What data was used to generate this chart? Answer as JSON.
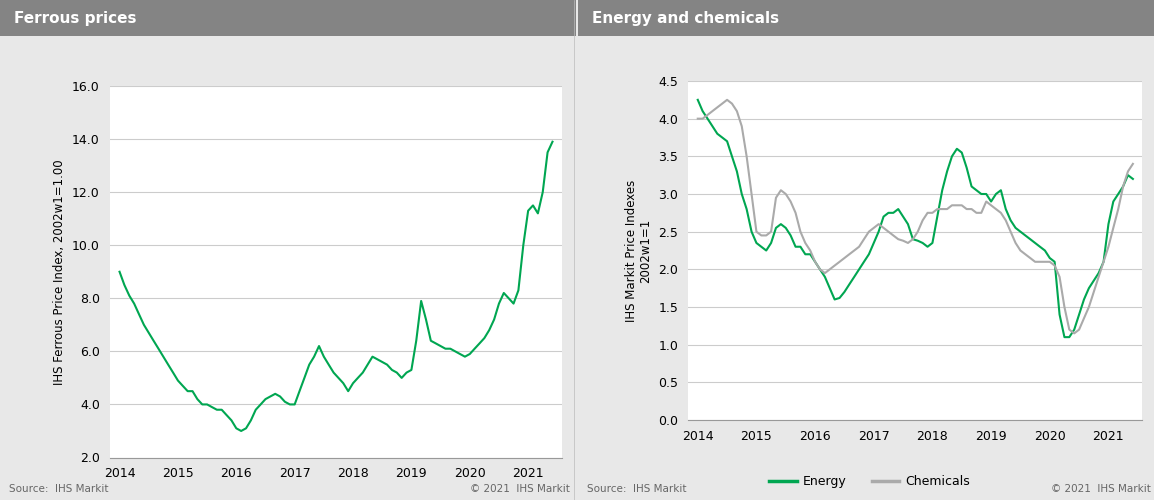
{
  "left_title": "Ferrous prices",
  "right_title": "Energy and chemicals",
  "left_ylabel": "IHS Ferrous Price Index, 2002w1=1.00",
  "right_ylabel": "IHS Markit Price Indexes\n2002w1=1",
  "left_ylim": [
    2.0,
    16.0
  ],
  "right_ylim": [
    0.0,
    4.5
  ],
  "left_yticks": [
    2.0,
    4.0,
    6.0,
    8.0,
    10.0,
    12.0,
    14.0,
    16.0
  ],
  "right_yticks": [
    0.0,
    0.5,
    1.0,
    1.5,
    2.0,
    2.5,
    3.0,
    3.5,
    4.0,
    4.5
  ],
  "source_text": "Source:  IHS Markit",
  "copyright_text": "© 2021  IHS Markit",
  "header_bg_color": "#848484",
  "header_text_color": "#ffffff",
  "panel_bg_color": "#e8e8e8",
  "plot_bg_color": "#ffffff",
  "grid_color": "#cccccc",
  "green_color": "#00a651",
  "gray_color": "#aaaaaa",
  "footer_text_color": "#666666",
  "line_width": 1.5,
  "ferrous_x": [
    2014.0,
    2014.083,
    2014.167,
    2014.25,
    2014.333,
    2014.417,
    2014.5,
    2014.583,
    2014.667,
    2014.75,
    2014.833,
    2014.917,
    2015.0,
    2015.083,
    2015.167,
    2015.25,
    2015.333,
    2015.417,
    2015.5,
    2015.583,
    2015.667,
    2015.75,
    2015.833,
    2015.917,
    2016.0,
    2016.083,
    2016.167,
    2016.25,
    2016.333,
    2016.417,
    2016.5,
    2016.583,
    2016.667,
    2016.75,
    2016.833,
    2016.917,
    2017.0,
    2017.083,
    2017.167,
    2017.25,
    2017.333,
    2017.417,
    2017.5,
    2017.583,
    2017.667,
    2017.75,
    2017.833,
    2017.917,
    2018.0,
    2018.083,
    2018.167,
    2018.25,
    2018.333,
    2018.417,
    2018.5,
    2018.583,
    2018.667,
    2018.75,
    2018.833,
    2018.917,
    2019.0,
    2019.083,
    2019.167,
    2019.25,
    2019.333,
    2019.417,
    2019.5,
    2019.583,
    2019.667,
    2019.75,
    2019.833,
    2019.917,
    2020.0,
    2020.083,
    2020.167,
    2020.25,
    2020.333,
    2020.417,
    2020.5,
    2020.583,
    2020.667,
    2020.75,
    2020.833,
    2020.917,
    2021.0,
    2021.083,
    2021.167,
    2021.25,
    2021.333,
    2021.417
  ],
  "ferrous_y": [
    9.0,
    8.5,
    8.1,
    7.8,
    7.4,
    7.0,
    6.7,
    6.4,
    6.1,
    5.8,
    5.5,
    5.2,
    4.9,
    4.7,
    4.5,
    4.5,
    4.2,
    4.0,
    4.0,
    3.9,
    3.8,
    3.8,
    3.6,
    3.4,
    3.1,
    3.0,
    3.1,
    3.4,
    3.8,
    4.0,
    4.2,
    4.3,
    4.4,
    4.3,
    4.1,
    4.0,
    4.0,
    4.5,
    5.0,
    5.5,
    5.8,
    6.2,
    5.8,
    5.5,
    5.2,
    5.0,
    4.8,
    4.5,
    4.8,
    5.0,
    5.2,
    5.5,
    5.8,
    5.7,
    5.6,
    5.5,
    5.3,
    5.2,
    5.0,
    5.2,
    5.3,
    6.4,
    7.9,
    7.2,
    6.4,
    6.3,
    6.2,
    6.1,
    6.1,
    6.0,
    5.9,
    5.8,
    5.9,
    6.1,
    6.3,
    6.5,
    6.8,
    7.2,
    7.8,
    8.2,
    8.0,
    7.8,
    8.3,
    10.0,
    11.3,
    11.5,
    11.2,
    12.0,
    13.5,
    13.9
  ],
  "energy_x": [
    2014.0,
    2014.083,
    2014.167,
    2014.25,
    2014.333,
    2014.417,
    2014.5,
    2014.583,
    2014.667,
    2014.75,
    2014.833,
    2014.917,
    2015.0,
    2015.083,
    2015.167,
    2015.25,
    2015.333,
    2015.417,
    2015.5,
    2015.583,
    2015.667,
    2015.75,
    2015.833,
    2015.917,
    2016.0,
    2016.083,
    2016.167,
    2016.25,
    2016.333,
    2016.417,
    2016.5,
    2016.583,
    2016.667,
    2016.75,
    2016.833,
    2016.917,
    2017.0,
    2017.083,
    2017.167,
    2017.25,
    2017.333,
    2017.417,
    2017.5,
    2017.583,
    2017.667,
    2017.75,
    2017.833,
    2017.917,
    2018.0,
    2018.083,
    2018.167,
    2018.25,
    2018.333,
    2018.417,
    2018.5,
    2018.583,
    2018.667,
    2018.75,
    2018.833,
    2018.917,
    2019.0,
    2019.083,
    2019.167,
    2019.25,
    2019.333,
    2019.417,
    2019.5,
    2019.583,
    2019.667,
    2019.75,
    2019.833,
    2019.917,
    2020.0,
    2020.083,
    2020.167,
    2020.25,
    2020.333,
    2020.417,
    2020.5,
    2020.583,
    2020.667,
    2020.75,
    2020.833,
    2020.917,
    2021.0,
    2021.083,
    2021.167,
    2021.25,
    2021.333,
    2021.417
  ],
  "energy_y": [
    4.25,
    4.1,
    4.0,
    3.9,
    3.8,
    3.75,
    3.7,
    3.5,
    3.3,
    3.0,
    2.8,
    2.5,
    2.35,
    2.3,
    2.25,
    2.35,
    2.55,
    2.6,
    2.55,
    2.45,
    2.3,
    2.3,
    2.2,
    2.2,
    2.1,
    2.0,
    1.9,
    1.75,
    1.6,
    1.62,
    1.7,
    1.8,
    1.9,
    2.0,
    2.1,
    2.2,
    2.35,
    2.5,
    2.7,
    2.75,
    2.75,
    2.8,
    2.7,
    2.6,
    2.4,
    2.38,
    2.35,
    2.3,
    2.35,
    2.7,
    3.05,
    3.3,
    3.5,
    3.6,
    3.55,
    3.35,
    3.1,
    3.05,
    3.0,
    3.0,
    2.9,
    3.0,
    3.05,
    2.8,
    2.65,
    2.55,
    2.5,
    2.45,
    2.4,
    2.35,
    2.3,
    2.25,
    2.15,
    2.1,
    1.4,
    1.1,
    1.1,
    1.2,
    1.4,
    1.6,
    1.75,
    1.85,
    1.95,
    2.1,
    2.6,
    2.9,
    3.0,
    3.1,
    3.25,
    3.2
  ],
  "chemicals_x": [
    2014.0,
    2014.083,
    2014.167,
    2014.25,
    2014.333,
    2014.417,
    2014.5,
    2014.583,
    2014.667,
    2014.75,
    2014.833,
    2014.917,
    2015.0,
    2015.083,
    2015.167,
    2015.25,
    2015.333,
    2015.417,
    2015.5,
    2015.583,
    2015.667,
    2015.75,
    2015.833,
    2015.917,
    2016.0,
    2016.083,
    2016.167,
    2016.25,
    2016.333,
    2016.417,
    2016.5,
    2016.583,
    2016.667,
    2016.75,
    2016.833,
    2016.917,
    2017.0,
    2017.083,
    2017.167,
    2017.25,
    2017.333,
    2017.417,
    2017.5,
    2017.583,
    2017.667,
    2017.75,
    2017.833,
    2017.917,
    2018.0,
    2018.083,
    2018.167,
    2018.25,
    2018.333,
    2018.417,
    2018.5,
    2018.583,
    2018.667,
    2018.75,
    2018.833,
    2018.917,
    2019.0,
    2019.083,
    2019.167,
    2019.25,
    2019.333,
    2019.417,
    2019.5,
    2019.583,
    2019.667,
    2019.75,
    2019.833,
    2019.917,
    2020.0,
    2020.083,
    2020.167,
    2020.25,
    2020.333,
    2020.417,
    2020.5,
    2020.583,
    2020.667,
    2020.75,
    2020.833,
    2020.917,
    2021.0,
    2021.083,
    2021.167,
    2021.25,
    2021.333,
    2021.417
  ],
  "chemicals_y": [
    4.0,
    4.0,
    4.05,
    4.1,
    4.15,
    4.2,
    4.25,
    4.2,
    4.1,
    3.9,
    3.5,
    3.0,
    2.5,
    2.45,
    2.45,
    2.5,
    2.95,
    3.05,
    3.0,
    2.9,
    2.75,
    2.5,
    2.35,
    2.25,
    2.1,
    2.0,
    1.95,
    2.0,
    2.05,
    2.1,
    2.15,
    2.2,
    2.25,
    2.3,
    2.4,
    2.5,
    2.55,
    2.6,
    2.55,
    2.5,
    2.45,
    2.4,
    2.38,
    2.35,
    2.4,
    2.5,
    2.65,
    2.75,
    2.75,
    2.8,
    2.8,
    2.8,
    2.85,
    2.85,
    2.85,
    2.8,
    2.8,
    2.75,
    2.75,
    2.9,
    2.85,
    2.8,
    2.75,
    2.65,
    2.5,
    2.35,
    2.25,
    2.2,
    2.15,
    2.1,
    2.1,
    2.1,
    2.1,
    2.05,
    1.9,
    1.5,
    1.2,
    1.15,
    1.2,
    1.35,
    1.5,
    1.7,
    1.9,
    2.1,
    2.3,
    2.55,
    2.8,
    3.1,
    3.3,
    3.4
  ],
  "xlim_left": [
    2013.83,
    2021.58
  ],
  "xlim_right": [
    2013.83,
    2021.58
  ],
  "xticks": [
    2014,
    2015,
    2016,
    2017,
    2018,
    2019,
    2020,
    2021
  ]
}
